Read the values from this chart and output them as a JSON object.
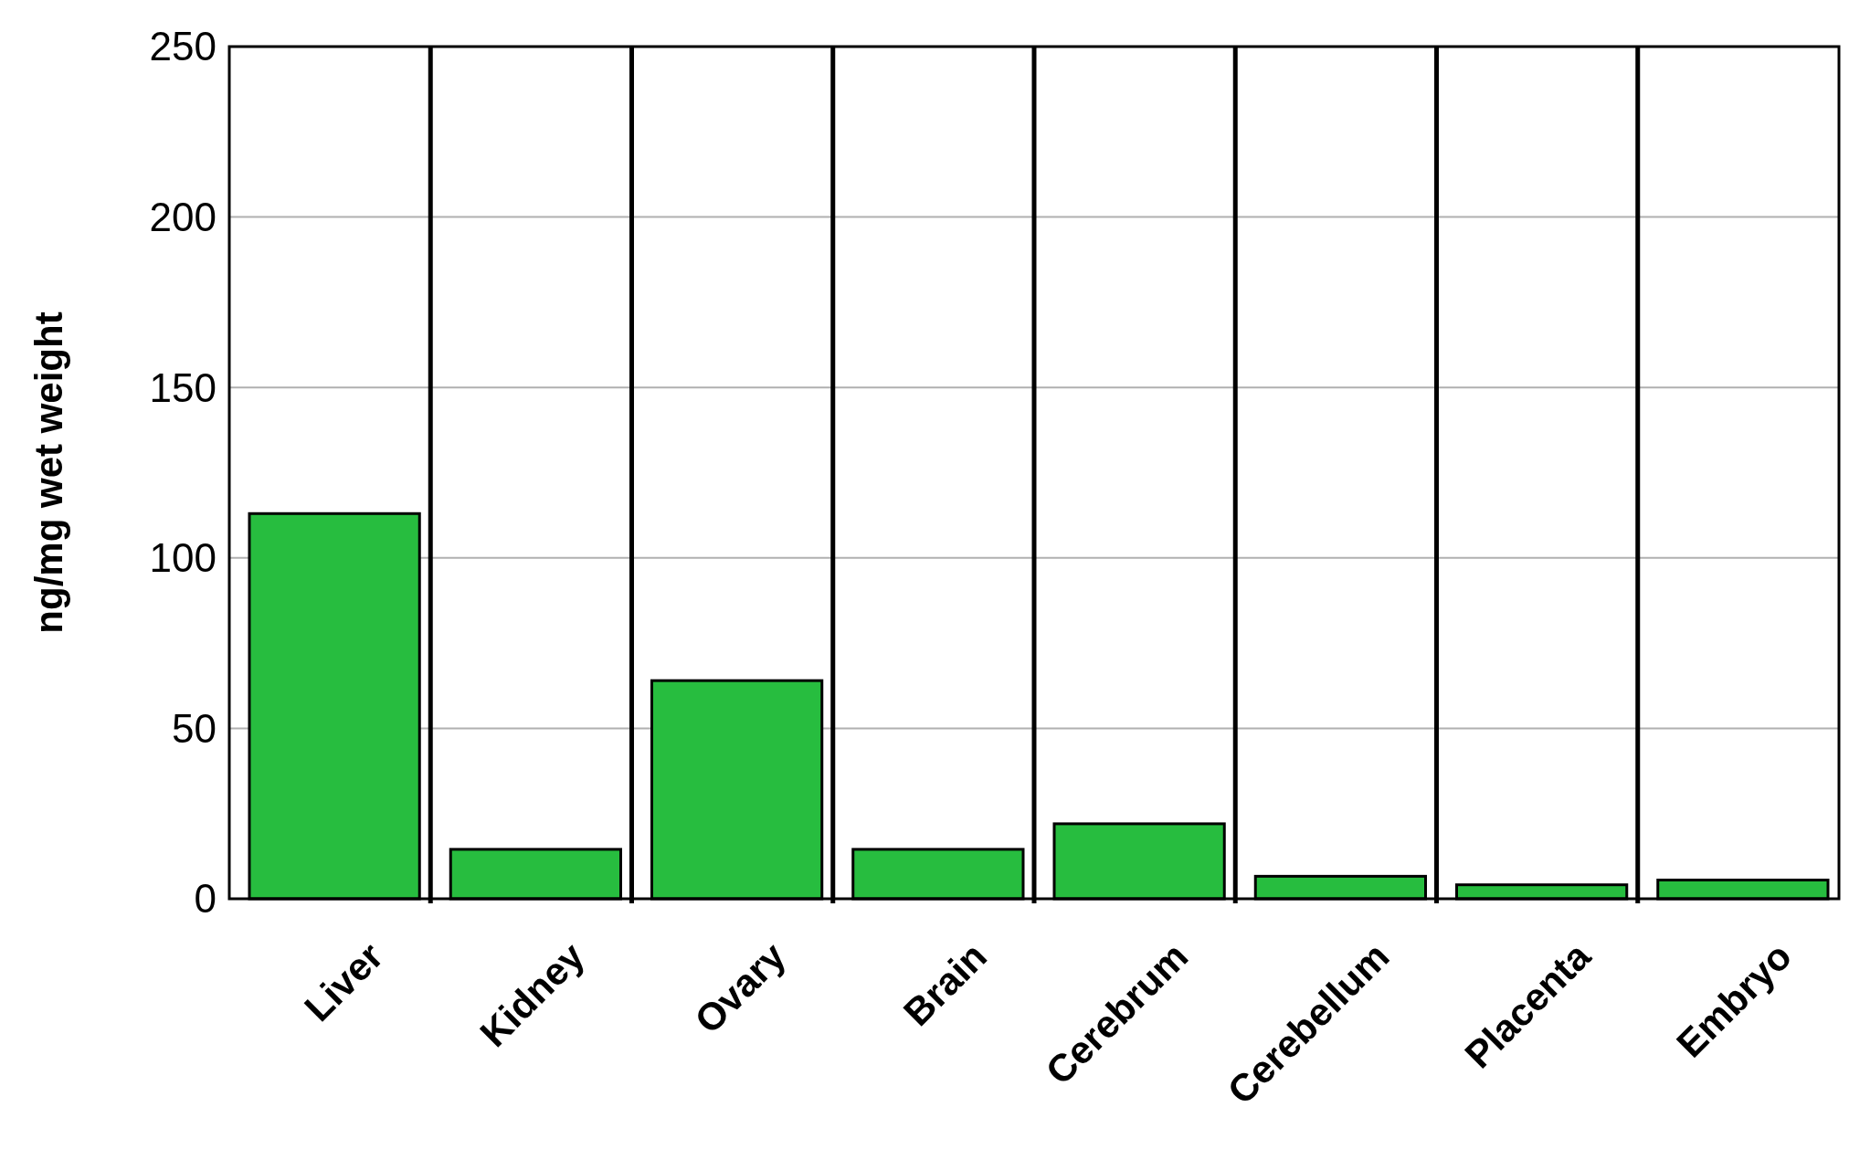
{
  "chart_data": {
    "type": "bar",
    "ylabel": "ng/mg wet weight",
    "categories": [
      "Liver",
      "Kidney",
      "Ovary",
      "Brain",
      "Cerebrum",
      "Cerebellum",
      "Placenta",
      "Embryo"
    ],
    "values": [
      113,
      14.5,
      64,
      14.5,
      22,
      6.6,
      4.1,
      5.5
    ],
    "color": "#27bd3f",
    "ylim": [
      0,
      250
    ],
    "yticks": [
      0,
      50,
      100,
      150,
      200,
      250
    ],
    "grid": "y"
  }
}
